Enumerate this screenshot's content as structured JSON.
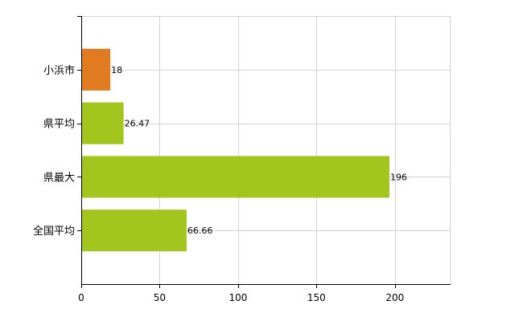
{
  "chart_data": {
    "type": "bar",
    "orientation": "horizontal",
    "categories": [
      "小浜市",
      "県平均",
      "県最大",
      "全国平均"
    ],
    "values": [
      18,
      26.47,
      196,
      66.66
    ],
    "value_labels": [
      "18",
      "26.47",
      "196",
      "66.66"
    ],
    "bar_colors": [
      "#e07b22",
      "#a3c61f",
      "#a3c61f",
      "#a3c61f"
    ],
    "xlim": [
      0,
      235
    ],
    "x_ticks": [
      0,
      50,
      100,
      150,
      200
    ],
    "x_tick_labels": [
      "0",
      "50",
      "100",
      "150",
      "200"
    ],
    "grid": true,
    "title": "",
    "xlabel": "",
    "ylabel": ""
  }
}
